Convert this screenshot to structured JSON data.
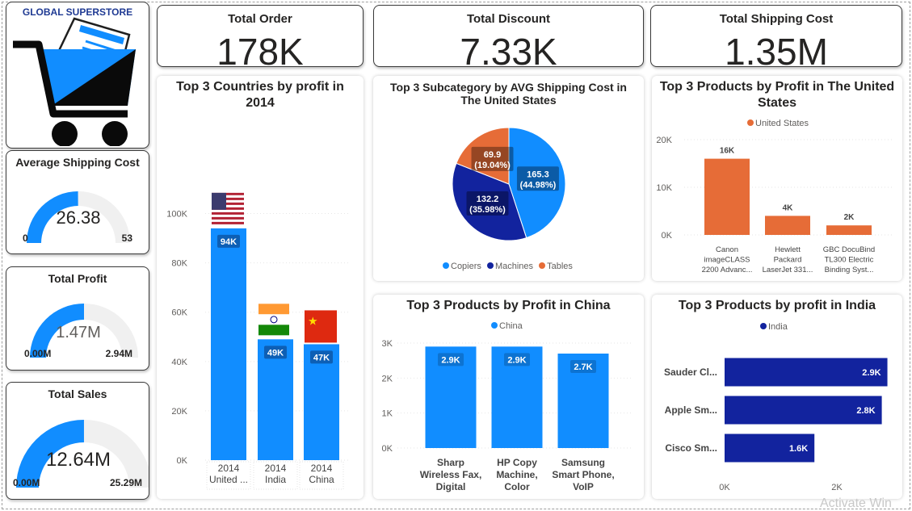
{
  "brand": {
    "title": "GLOBAL SUPERSTORE"
  },
  "kpis": [
    {
      "title": "Total Order",
      "value": "178K"
    },
    {
      "title": "Total Discount",
      "value": "7.33K"
    },
    {
      "title": "Total Shipping Cost",
      "value": "1.35M"
    }
  ],
  "gauges": [
    {
      "title": "Average Shipping Cost",
      "value": "26.38",
      "min": "0",
      "max": "53",
      "fraction": 0.4977
    },
    {
      "title": "Total Profit",
      "value": "1.47M",
      "min": "0.00M",
      "max": "2.94M",
      "fraction": 0.5
    },
    {
      "title": "Total Sales",
      "value": "12.64M",
      "min": "0.00M",
      "max": "25.29M",
      "fraction": 0.4998
    }
  ],
  "colors": {
    "primary": "#118DFF",
    "dark_blue": "#12239E",
    "orange": "#E66C37",
    "gauge_track": "#F0F0F0"
  },
  "chart_data": [
    {
      "type": "bar",
      "title": "Top 3 Countries by profit in 2014",
      "categories": [
        "2014 United ...",
        "2014 India",
        "2014 China"
      ],
      "flags": [
        "us-flag-icon",
        "india-flag-icon",
        "china-flag-icon"
      ],
      "values": [
        94000,
        49000,
        47000
      ],
      "data_labels": [
        "94K",
        "49K",
        "47K"
      ],
      "yticks": [
        "0K",
        "20K",
        "40K",
        "60K",
        "80K",
        "100K"
      ],
      "ylim": [
        0,
        110000
      ],
      "grid": true
    },
    {
      "type": "pie",
      "title": "Top 3 Subcategory by AVG Shipping Cost in The United States",
      "categories": [
        "Copiers",
        "Machines",
        "Tables"
      ],
      "values": [
        165.3,
        132.2,
        69.9
      ],
      "data_labels": [
        [
          "165.3",
          "(44.98%)"
        ],
        [
          "132.2",
          "(35.98%)"
        ],
        [
          "69.9",
          "(19.04%)"
        ]
      ],
      "colors": [
        "#118DFF",
        "#12239E",
        "#E66C37"
      ],
      "legend": "bottom"
    },
    {
      "type": "bar",
      "title": "Top 3 Products by Profit in The United States",
      "legend_label": "United States",
      "categories": [
        [
          "Canon",
          "imageCLASS",
          "2200 Advanc..."
        ],
        [
          "Hewlett",
          "Packard",
          "LaserJet 331..."
        ],
        [
          "GBC DocuBind",
          "TL300 Electric",
          "Binding Syst..."
        ]
      ],
      "values": [
        16000,
        4000,
        2000
      ],
      "data_labels": [
        "16K",
        "4K",
        "2K"
      ],
      "yticks": [
        "0K",
        "10K",
        "20K"
      ],
      "ylim": [
        0,
        20000
      ],
      "grid": true,
      "color": "#E66C37"
    },
    {
      "type": "bar",
      "title": "Top 3 Products by Profit in China",
      "legend_label": "China",
      "categories": [
        [
          "Sharp",
          "Wireless Fax,",
          "Digital"
        ],
        [
          "HP Copy",
          "Machine,",
          "Color"
        ],
        [
          "Samsung",
          "Smart Phone,",
          "VoIP"
        ]
      ],
      "values": [
        2900,
        2900,
        2700
      ],
      "data_labels": [
        "2.9K",
        "2.9K",
        "2.7K"
      ],
      "yticks": [
        "0K",
        "1K",
        "2K",
        "3K"
      ],
      "ylim": [
        0,
        3000
      ],
      "grid": true,
      "color": "#118DFF"
    },
    {
      "type": "bar",
      "orientation": "horizontal",
      "title": "Top 3 Products by profit in India",
      "legend_label": "India",
      "categories": [
        "Sauder Cl...",
        "Apple Sm...",
        "Cisco Sm..."
      ],
      "values": [
        2900,
        2800,
        1600
      ],
      "data_labels": [
        "2.9K",
        "2.8K",
        "1.6K"
      ],
      "xticks": [
        "0K",
        "2K"
      ],
      "xlim": [
        0,
        3000
      ],
      "color": "#12239E"
    }
  ],
  "watermark": "Activate Win"
}
